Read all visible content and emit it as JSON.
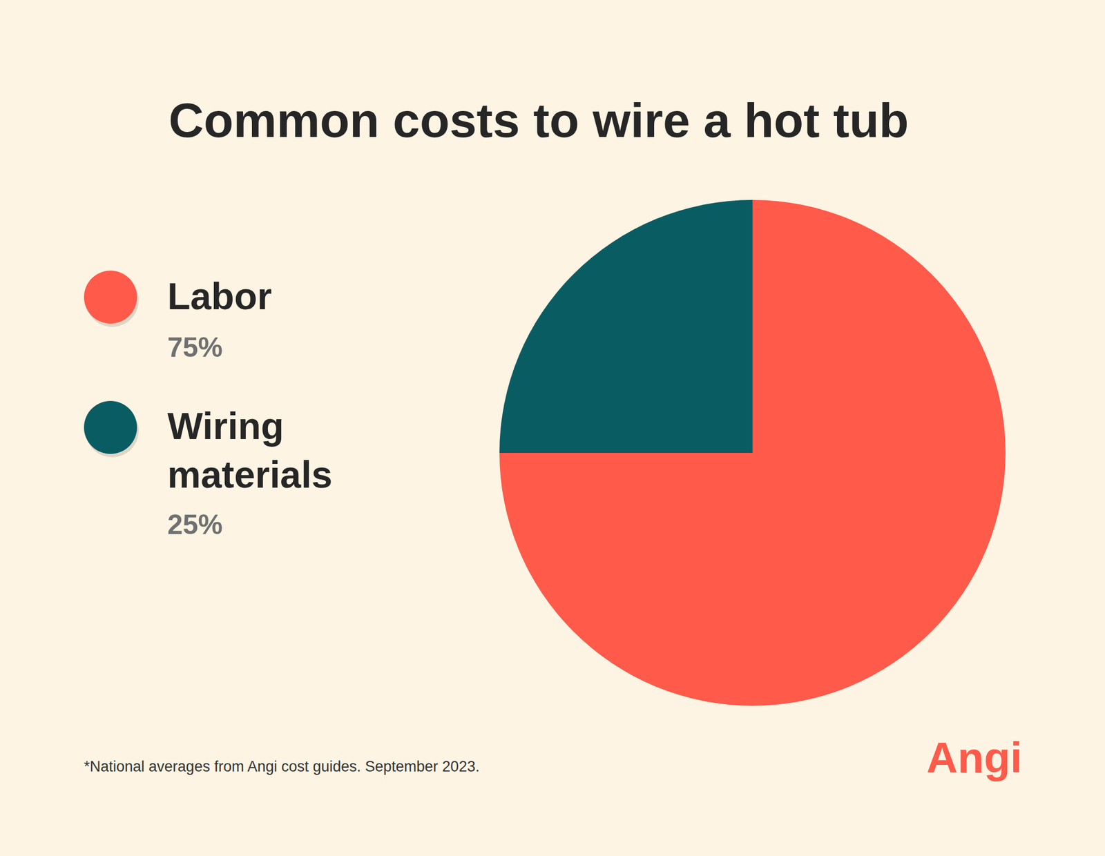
{
  "chart_data": {
    "type": "pie",
    "title": "Common costs to wire a hot tub",
    "categories": [
      "Labor",
      "Wiring materials"
    ],
    "values": [
      75,
      25
    ],
    "value_labels": [
      "75%",
      "25%"
    ],
    "colors": [
      "#FF5A4A",
      "#0A5C63"
    ],
    "legend": "left",
    "footnote": "*National averages from Angi cost guides. September 2023.",
    "logo": "Angi"
  }
}
